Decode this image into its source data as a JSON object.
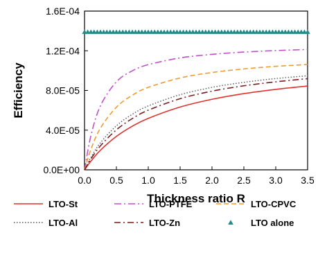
{
  "chart_data": {
    "type": "line",
    "xlabel": "Thickness ratio R",
    "ylabel": "Efficiency",
    "xlim": [
      0.0,
      3.5
    ],
    "ylim": [
      0.0,
      0.00016
    ],
    "x_ticks": [
      "0.0",
      "0.5",
      "1.0",
      "1.5",
      "2.0",
      "2.5",
      "3.0",
      "3.5"
    ],
    "y_ticks": [
      "0.0E+00",
      "4.0E-05",
      "8.0E-05",
      "1.2E-04",
      "1.6E-04"
    ],
    "grid": false,
    "legend_position": "bottom",
    "series": [
      {
        "name": "LTO-St",
        "color": "#e0302a",
        "style": "solid",
        "x": [
          0.0,
          0.1,
          0.25,
          0.5,
          0.75,
          1.0,
          1.5,
          2.0,
          2.5,
          3.0,
          3.5
        ],
        "y": [
          0.0,
          8.7e-06,
          1.98e-05,
          3.37e-05,
          4.4e-05,
          5.19e-05,
          6.33e-05,
          7.11e-05,
          7.68e-05,
          8.11e-05,
          8.45e-05
        ]
      },
      {
        "name": "LTO-PTFE",
        "color": "#c050c8",
        "style": "dashdot",
        "x": [
          0.0,
          0.1,
          0.25,
          0.5,
          0.75,
          1.0,
          1.5,
          2.0,
          2.5,
          3.0,
          3.5
        ],
        "y": [
          0.0,
          3.44e-05,
          6.46e-05,
          8.87e-05,
          9.98e-05,
          0.000106,
          0.0001128,
          0.0001164,
          0.0001187,
          0.0001202,
          0.0001213
        ]
      },
      {
        "name": "LTO-CPVC",
        "color": "#f29a30",
        "style": "dashed",
        "x": [
          0.0,
          0.1,
          0.25,
          0.5,
          0.75,
          1.0,
          1.5,
          2.0,
          2.5,
          3.0,
          3.5
        ],
        "y": [
          0.0,
          2.06e-05,
          4.21e-05,
          6.31e-05,
          7.52e-05,
          8.31e-05,
          9.26e-05,
          9.81e-05,
          0.0001017,
          0.0001043,
          0.0001062
        ]
      },
      {
        "name": "LTO-Al",
        "color": "#555555",
        "style": "dotted",
        "x": [
          0.0,
          0.1,
          0.25,
          0.5,
          0.75,
          1.0,
          1.5,
          2.0,
          2.5,
          3.0,
          3.5
        ],
        "y": [
          0.0,
          1.25e-05,
          2.73e-05,
          4.44e-05,
          5.6e-05,
          6.44e-05,
          7.57e-05,
          8.31e-05,
          8.82e-05,
          9.2e-05,
          9.48e-05
        ]
      },
      {
        "name": "LTO-Zn",
        "color": "#7a1c1c",
        "style": "longdashdot",
        "x": [
          0.0,
          0.1,
          0.25,
          0.5,
          0.75,
          1.0,
          1.5,
          2.0,
          2.5,
          3.0,
          3.5
        ],
        "y": [
          0.0,
          1.09e-05,
          2.42e-05,
          4.03e-05,
          5.17e-05,
          6.01e-05,
          7.17e-05,
          7.93e-05,
          8.47e-05,
          8.87e-05,
          9.19e-05
        ]
      },
      {
        "name": "LTO alone",
        "color": "#1f8a8a",
        "style": "markers",
        "x": [
          0.0,
          0.05,
          0.1,
          0.15,
          0.2,
          0.25,
          0.3,
          0.35,
          0.4,
          0.45,
          0.5,
          0.55,
          0.6,
          0.65,
          0.7,
          0.75,
          0.8,
          0.85,
          0.9,
          0.95,
          1.0,
          1.05,
          1.1,
          1.15,
          1.2,
          1.25,
          1.3,
          1.35,
          1.4,
          1.45,
          1.5,
          1.55,
          1.6,
          1.65,
          1.7,
          1.75,
          1.8,
          1.85,
          1.9,
          1.95,
          2.0,
          2.05,
          2.1,
          2.15,
          2.2,
          2.25,
          2.3,
          2.35,
          2.4,
          2.45,
          2.5,
          2.55,
          2.6,
          2.65,
          2.7,
          2.75,
          2.8,
          2.85,
          2.9,
          2.95,
          3.0,
          3.05,
          3.1,
          3.15,
          3.2,
          3.25,
          3.3,
          3.35,
          3.4,
          3.45,
          3.5
        ],
        "y_constant": 0.000139
      }
    ]
  }
}
